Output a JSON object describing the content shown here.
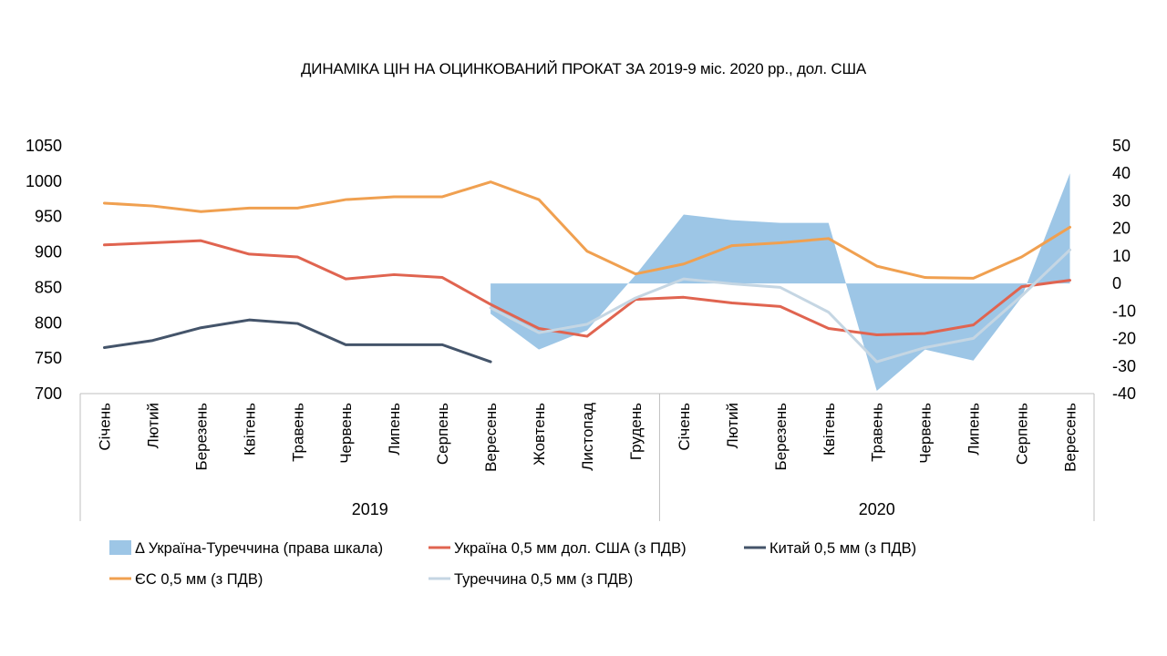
{
  "chart_data": {
    "type": "line",
    "title": "ДИНАМІКА ЦІН НА ОЦИНКОВАНИЙ ПРОКАТ ЗА 2019-9 міс. 2020 рр., дол. США",
    "groups": [
      {
        "label": "2019",
        "count": 12
      },
      {
        "label": "2020",
        "count": 9
      }
    ],
    "categories": [
      "Січень",
      "Лютий",
      "Березень",
      "Квітень",
      "Травень",
      "Червень",
      "Липень",
      "Серпень",
      "Вересень",
      "Жовтень",
      "Листопад",
      "Грудень",
      "Січень",
      "Лютий",
      "Березень",
      "Квітень",
      "Травень",
      "Червень",
      "Липень",
      "Серпень",
      "Вересень"
    ],
    "y_left": {
      "min": 700,
      "max": 1050,
      "step": 50
    },
    "y_right": {
      "min": -40,
      "max": 50,
      "step": 10
    },
    "series": [
      {
        "name": "Δ Україна-Туреччина (права шкала)",
        "type": "area",
        "axis": "right",
        "color": "#9dc6e6",
        "values": [
          null,
          null,
          null,
          null,
          null,
          null,
          null,
          null,
          -11,
          -24,
          -17,
          3,
          25,
          23,
          22,
          22,
          -39,
          -24,
          -28,
          -5,
          40
        ]
      },
      {
        "name": "Україна 0,5 мм дол. США (з ПДВ)",
        "type": "line",
        "axis": "left",
        "color": "#e06450",
        "values": [
          910,
          913,
          916,
          897,
          893,
          862,
          868,
          864,
          826,
          792,
          781,
          833,
          836,
          828,
          823,
          792,
          783,
          785,
          797,
          851,
          860
        ]
      },
      {
        "name": "Китай 0,5 мм (з ПДВ)",
        "type": "line",
        "axis": "left",
        "color": "#44546a",
        "values": [
          765,
          775,
          793,
          804,
          799,
          769,
          769,
          769,
          745,
          null,
          null,
          null,
          null,
          null,
          null,
          null,
          null,
          null,
          null,
          null,
          null
        ]
      },
      {
        "name": "ЄС 0,5 мм (з ПДВ)",
        "type": "line",
        "axis": "left",
        "color": "#f0a050",
        "values": [
          969,
          965,
          957,
          962,
          962,
          974,
          978,
          978,
          999,
          974,
          901,
          869,
          883,
          909,
          913,
          919,
          880,
          864,
          863,
          893,
          935
        ]
      },
      {
        "name": "Туреччина 0,5 мм (з ПДВ)",
        "type": "line",
        "axis": "left",
        "color": "#c5d6e3",
        "values": [
          null,
          null,
          null,
          null,
          null,
          null,
          null,
          null,
          821,
          786,
          798,
          835,
          862,
          855,
          850,
          815,
          745,
          765,
          778,
          838,
          903
        ]
      }
    ],
    "legend_order": [
      0,
      1,
      2,
      3,
      4
    ]
  }
}
